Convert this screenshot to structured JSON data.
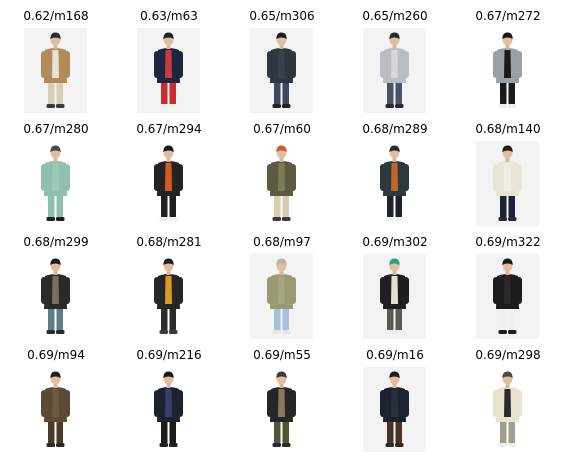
{
  "grid": {
    "rows": [
      [
        {
          "label": "0.62/m168",
          "icon": "person-photo-icon",
          "bg": "#f3f3f3",
          "coat": "#b28b5a",
          "top": "#e8e2d6",
          "pants": "#d8cdb8",
          "shoes": "#3a3a3a",
          "hair": "#2b2b2b"
        },
        {
          "label": "0.63/m63",
          "icon": "person-photo-icon",
          "bg": "#f3f3f3",
          "coat": "#1d2540",
          "top": "#c73b3b",
          "pants": "#c62d2d",
          "shoes": "#f0f0f0",
          "hair": "#222222"
        },
        {
          "label": "0.65/m306",
          "icon": "person-photo-icon",
          "bg": "#f3f3f3",
          "coat": "#2f3640",
          "top": "#39414c",
          "pants": "#3b4a5c",
          "shoes": "#222222",
          "hair": "#1e1e1e"
        },
        {
          "label": "0.65/m260",
          "icon": "person-photo-icon",
          "bg": "#f3f3f3",
          "coat": "#b9bcc2",
          "top": "#d5d7db",
          "pants": "#4b5466",
          "shoes": "#2a2a2a",
          "hair": "#2a2a2a"
        },
        {
          "label": "0.67/m272",
          "icon": "person-photo-icon",
          "bg": "#ffffff",
          "coat": "#9aa0a8",
          "top": "#1a1a1a",
          "pants": "#1b1b1b",
          "shoes": "#eeeeee",
          "hair": "#1a1a1a"
        }
      ],
      [
        {
          "label": "0.67/m280",
          "icon": "person-photo-icon",
          "bg": "#ffffff",
          "coat": "#8fbfae",
          "top": "#9ccab8",
          "pants": "#8fc0ad",
          "shoes": "#1c1c1c",
          "hair": "#4a4a4a"
        },
        {
          "label": "0.67/m294",
          "icon": "person-photo-icon",
          "bg": "#ffffff",
          "coat": "#232323",
          "top": "#d45a1e",
          "pants": "#1f1f1f",
          "shoes": "#eeeeee",
          "hair": "#1a1a1a"
        },
        {
          "label": "0.67/m60",
          "icon": "person-photo-icon",
          "bg": "#ffffff",
          "coat": "#5b5a3e",
          "top": "#7d7a58",
          "pants": "#d9ccb0",
          "shoes": "#3a3a3a",
          "hair": "#c95b2d"
        },
        {
          "label": "0.68/m289",
          "icon": "person-photo-icon",
          "bg": "#ffffff",
          "coat": "#2d3a3c",
          "top": "#c1652c",
          "pants": "#1e2230",
          "shoes": "#f0f0f0",
          "hair": "#2b2b2b"
        },
        {
          "label": "0.68/m140",
          "icon": "person-photo-icon",
          "bg": "#f3f3f3",
          "coat": "#e9e4d8",
          "top": "#f1ede3",
          "pants": "#1c2233",
          "shoes": "#2a2a2a",
          "hair": "#1e1e1e"
        }
      ],
      [
        {
          "label": "0.68/m299",
          "icon": "person-photo-icon",
          "bg": "#ffffff",
          "coat": "#2a2a2a",
          "top": "#7b6f62",
          "pants": "#5f7e83",
          "shoes": "#2a2a2a",
          "hair": "#1a1a1a"
        },
        {
          "label": "0.68/m281",
          "icon": "person-photo-icon",
          "bg": "#ffffff",
          "coat": "#262626",
          "top": "#d99a1e",
          "pants": "#2b2b2b",
          "shoes": "#3a3a3a",
          "hair": "#1f1f1f"
        },
        {
          "label": "0.68/m97",
          "icon": "person-photo-icon",
          "bg": "#f3f3f3",
          "coat": "#9a9a73",
          "top": "#a8a683",
          "pants": "#a9c1d8",
          "shoes": "#e6e6e6",
          "hair": "#b8b2a8"
        },
        {
          "label": "0.69/m302",
          "icon": "person-photo-icon",
          "bg": "#f3f3f3",
          "coat": "#1f1f1f",
          "top": "#e5e0d2",
          "pants": "#5a5a52",
          "shoes": "#eeeeee",
          "hair": "#2aa08a"
        },
        {
          "label": "0.69/m322",
          "icon": "person-photo-icon",
          "bg": "#f3f3f3",
          "coat": "#1c1c1c",
          "top": "#2a2a2a",
          "pants": "#f0f0f0",
          "shoes": "#1f1f1f",
          "hair": "#1a1a1a"
        }
      ],
      [
        {
          "label": "0.69/m94",
          "icon": "person-photo-icon",
          "bg": "#ffffff",
          "coat": "#5c4a35",
          "top": "#6e5a44",
          "pants": "#4d3a2a",
          "shoes": "#2a2a2a",
          "hair": "#1f1f1f"
        },
        {
          "label": "0.69/m216",
          "icon": "person-photo-icon",
          "bg": "#ffffff",
          "coat": "#1e2230",
          "top": "#3a3f6a",
          "pants": "#1b1b1b",
          "shoes": "#222222",
          "hair": "#1a1a1a"
        },
        {
          "label": "0.69/m55",
          "icon": "person-photo-icon",
          "bg": "#ffffff",
          "coat": "#262626",
          "top": "#8a7a5c",
          "pants": "#4e5632",
          "shoes": "#2a2a2a",
          "hair": "#3a3a3a"
        },
        {
          "label": "0.69/m16",
          "icon": "person-photo-icon",
          "bg": "#f3f3f3",
          "coat": "#1d2230",
          "top": "#2a2f3e",
          "pants": "#4a3426",
          "shoes": "#2a2a2a",
          "hair": "#1a1a1a"
        },
        {
          "label": "0.69/m298",
          "icon": "person-photo-icon",
          "bg": "#ffffff",
          "coat": "#e8e2cf",
          "top": "#2b2b2b",
          "pants": "#a29d8d",
          "shoes": "#eeeeee",
          "hair": "#4a4a4a"
        }
      ]
    ]
  }
}
